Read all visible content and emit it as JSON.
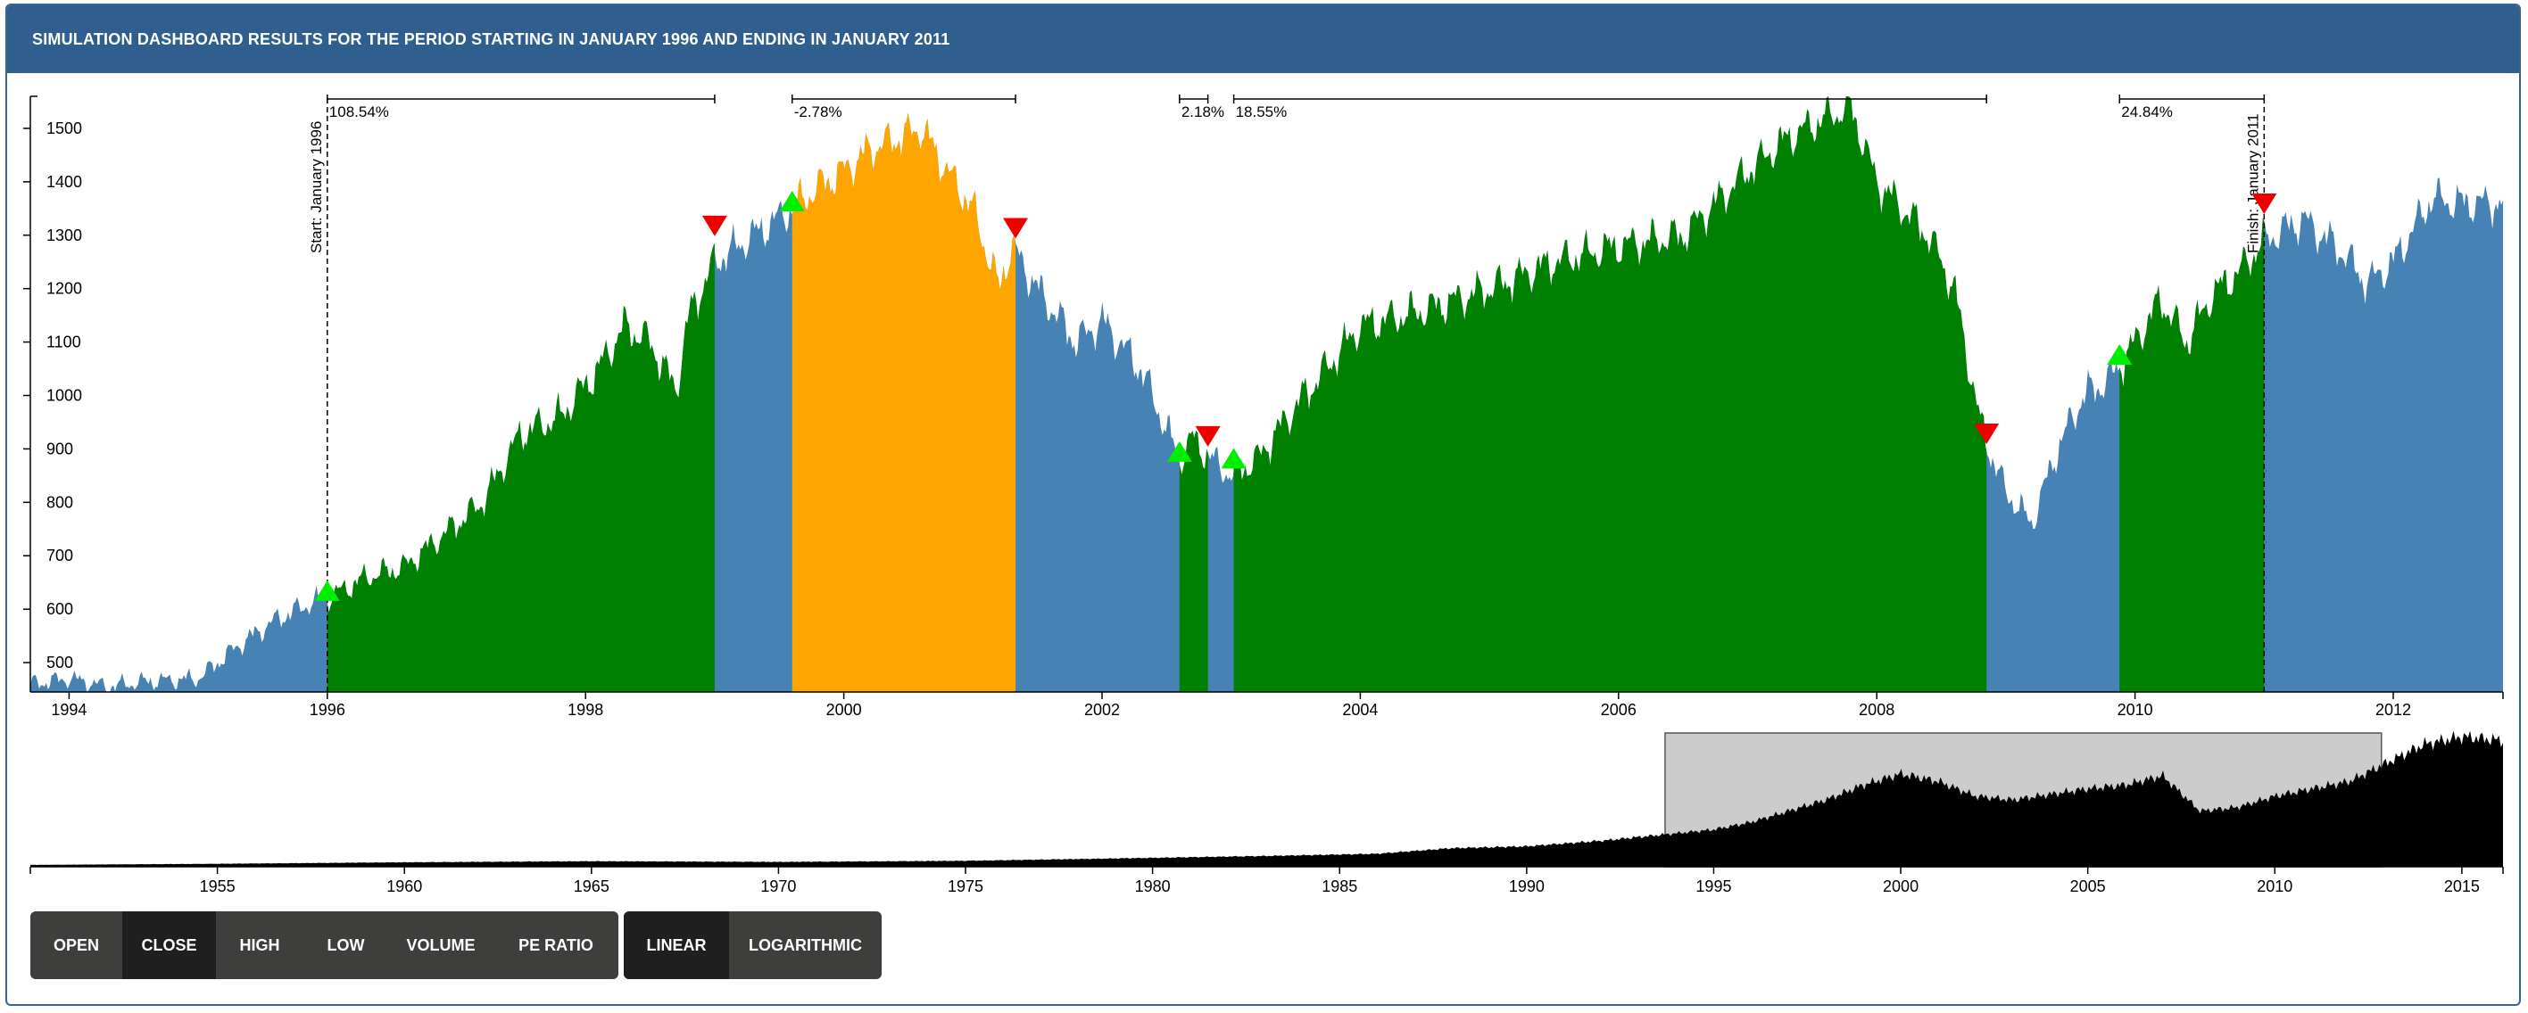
{
  "header": {
    "title": "SIMULATION DASHBOARD RESULTS FOR THE PERIOD STARTING IN JANUARY 1996 AND ENDING IN JANUARY 2011"
  },
  "colors": {
    "header": "#305e8e",
    "hold": "#4682b4",
    "gain": "#008000",
    "loss": "#ffa500",
    "buy_marker": "#00ee00",
    "sell_marker": "#ee0000",
    "brush": "#cccccc"
  },
  "chart_data": [
    {
      "type": "area",
      "xlim": [
        1993.7,
        2012.85
      ],
      "ylim": [
        445,
        1560
      ],
      "y_ticks": [
        500,
        600,
        700,
        800,
        900,
        1000,
        1100,
        1200,
        1300,
        1400,
        1500
      ],
      "x_ticks": [
        "1994",
        "1996",
        "1998",
        "2000",
        "2002",
        "2004",
        "2006",
        "2008",
        "2010",
        "2012"
      ],
      "series": {
        "x": [
          1993.7,
          1994.0,
          1994.3,
          1994.6,
          1995.0,
          1995.3,
          1995.6,
          1995.9,
          1996.0,
          1996.3,
          1996.6,
          1996.9,
          1997.2,
          1997.5,
          1997.8,
          1998.1,
          1998.3,
          1998.5,
          1998.7,
          1998.8,
          1999.0,
          1999.3,
          1999.6,
          1999.8,
          2000.0,
          2000.2,
          2000.4,
          2000.6,
          2000.8,
          2001.0,
          2001.2,
          2001.3,
          2001.5,
          2001.8,
          2002.0,
          2002.3,
          2002.6,
          2002.7,
          2002.85,
          2003.0,
          2003.2,
          2003.5,
          2003.8,
          2004.0,
          2004.5,
          2005.0,
          2005.5,
          2006.0,
          2006.5,
          2007.0,
          2007.3,
          2007.6,
          2007.8,
          2008.0,
          2008.2,
          2008.4,
          2008.6,
          2008.8,
          2008.9,
          2009.0,
          2009.2,
          2009.4,
          2009.6,
          2009.8,
          2009.95,
          2010.2,
          2010.4,
          2010.6,
          2010.8,
          2011.0,
          2011.3,
          2011.6,
          2011.8,
          2012.0,
          2012.3,
          2012.5,
          2012.85
        ],
        "y": [
          460,
          470,
          455,
          465,
          470,
          530,
          580,
          615,
          620,
          660,
          680,
          740,
          800,
          930,
          960,
          1050,
          1130,
          1100,
          1010,
          1150,
          1250,
          1300,
          1350,
          1390,
          1420,
          1460,
          1480,
          1500,
          1420,
          1350,
          1200,
          1280,
          1200,
          1100,
          1140,
          1050,
          880,
          920,
          880,
          850,
          880,
          980,
          1070,
          1130,
          1160,
          1200,
          1250,
          1280,
          1300,
          1420,
          1480,
          1520,
          1540,
          1400,
          1350,
          1300,
          1200,
          950,
          880,
          820,
          760,
          900,
          1000,
          1030,
          1080,
          1180,
          1100,
          1190,
          1230,
          1290,
          1330,
          1270,
          1210,
          1250,
          1370,
          1360,
          1360
        ]
      },
      "segments": [
        {
          "start": 1996.0,
          "end": 1999.0,
          "state": "gain"
        },
        {
          "start": 1999.6,
          "end": 2001.33,
          "state": "loss"
        },
        {
          "start": 2002.6,
          "end": 2002.82,
          "state": "gain"
        },
        {
          "start": 2003.02,
          "end": 2008.85,
          "state": "gain"
        },
        {
          "start": 2009.88,
          "end": 2011.0,
          "state": "gain"
        }
      ],
      "buy_markers": [
        1996.0,
        1999.6,
        2002.6,
        2003.02,
        2009.88
      ],
      "sell_markers": [
        1999.0,
        2001.33,
        2002.82,
        2008.85,
        2011.0
      ],
      "brackets": [
        {
          "start": 1996.0,
          "end": 1999.0,
          "label": "108.54%"
        },
        {
          "start": 1999.6,
          "end": 2001.33,
          "label": "-2.78%"
        },
        {
          "start": 2002.6,
          "end": 2002.82,
          "label": "2.18%"
        },
        {
          "start": 2003.02,
          "end": 2008.85,
          "label": "18.55%"
        },
        {
          "start": 2009.88,
          "end": 2011.0,
          "label": "24.84%"
        }
      ],
      "start_marker": {
        "x": 1996.0,
        "label": "Start: January 1996"
      },
      "finish_marker": {
        "x": 2011.0,
        "label": "Finish: January 2011"
      }
    },
    {
      "type": "area",
      "xlim": [
        1950.0,
        2016.1
      ],
      "x_ticks": [
        "1955",
        "1960",
        "1965",
        "1970",
        "1975",
        "1980",
        "1985",
        "1990",
        "1995",
        "2000",
        "2005",
        "2010",
        "2015"
      ],
      "brush": {
        "start": 1993.7,
        "end": 2012.85
      },
      "series": {
        "x": [
          1950,
          1955,
          1960,
          1965,
          1970,
          1975,
          1980,
          1983,
          1986,
          1988,
          1990,
          1992,
          1993,
          1995,
          1996,
          1997,
          1998,
          1999,
          2000,
          2001,
          2002,
          2003,
          2004,
          2005,
          2006,
          2007,
          2008,
          2009,
          2010,
          2011,
          2012,
          2013,
          2014,
          2015,
          2016.1
        ],
        "y": [
          0.5,
          0.8,
          1.2,
          1.5,
          1.3,
          1.6,
          2.4,
          2.9,
          3.5,
          5.0,
          5.5,
          7.0,
          8.0,
          10.0,
          12.0,
          15.0,
          18.0,
          22.0,
          25.0,
          23.0,
          19.0,
          18.0,
          19.5,
          21.0,
          22.0,
          24.5,
          15.0,
          16.0,
          19.0,
          21.0,
          23.0,
          28.0,
          33.0,
          35.0,
          34.0
        ]
      }
    }
  ],
  "buttons": {
    "price": [
      {
        "label": "OPEN",
        "active": false
      },
      {
        "label": "CLOSE",
        "active": true
      },
      {
        "label": "HIGH",
        "active": false
      },
      {
        "label": "LOW",
        "active": false
      },
      {
        "label": "VOLUME",
        "active": false
      },
      {
        "label": "PE RATIO",
        "active": false
      }
    ],
    "scale": [
      {
        "label": "LINEAR",
        "active": true
      },
      {
        "label": "LOGARITHMIC",
        "active": false
      }
    ]
  }
}
